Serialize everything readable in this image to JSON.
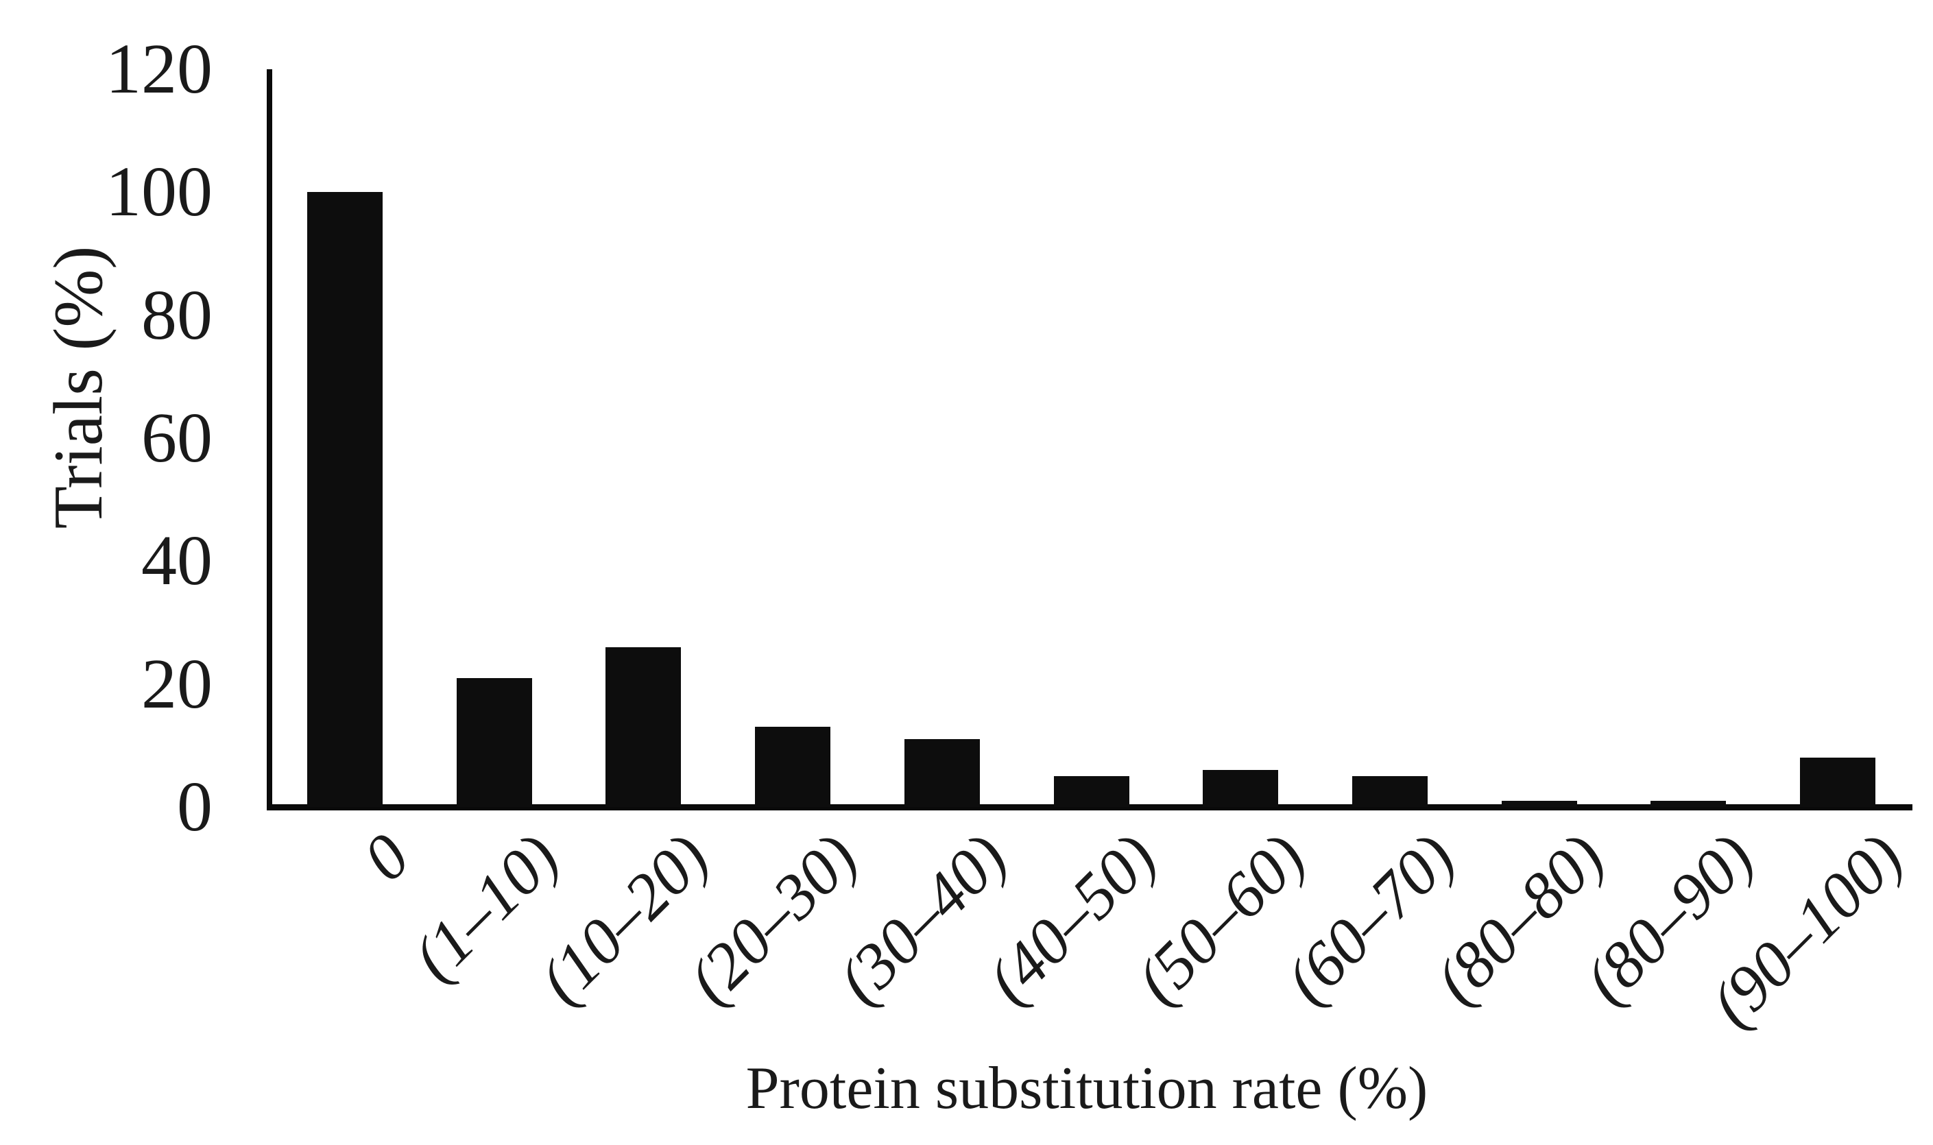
{
  "page": {
    "background": "#ffffff"
  },
  "chart_data": {
    "type": "bar",
    "title": "",
    "xlabel": "Protein substitution rate (%)",
    "ylabel": "Trials (%)",
    "categories": [
      "0",
      "(1–10)",
      "(10–20)",
      "(20–30)",
      "(30–40)",
      "(40–50)",
      "(50–60)",
      "(60–70)",
      "(80–80)",
      "(80–90)",
      "(90–100)"
    ],
    "values": [
      100,
      21,
      26,
      13,
      11,
      5,
      6,
      5,
      1,
      1,
      8
    ],
    "ylim": [
      0,
      120
    ],
    "yticks": [
      0,
      20,
      40,
      60,
      80,
      100,
      120
    ],
    "grid": false,
    "legend": "none",
    "bar_color": "#0d0d0d",
    "axis_color": "#0a0a0a",
    "text_color": "#1a1a1a"
  }
}
